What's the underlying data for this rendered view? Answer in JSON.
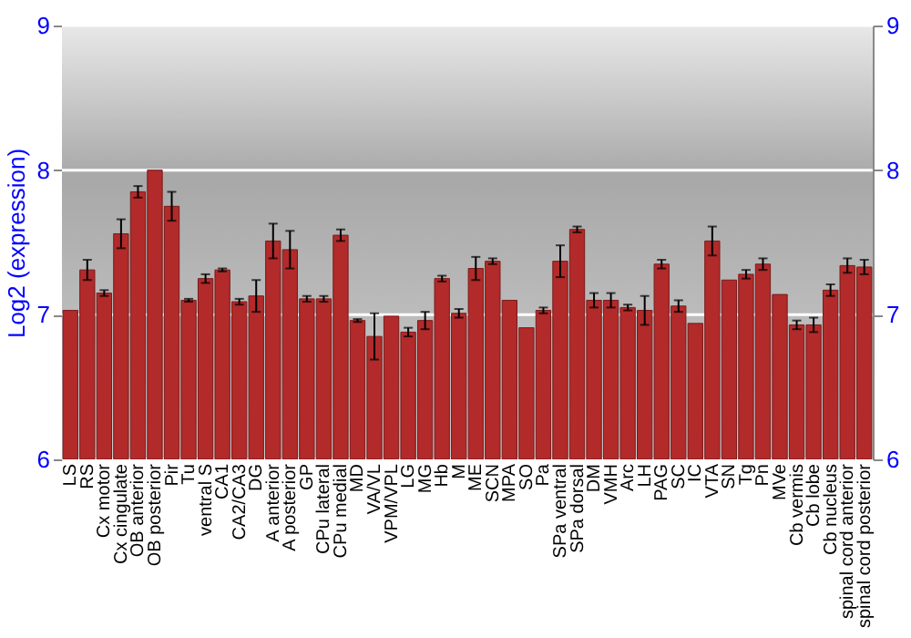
{
  "chart_data": {
    "type": "bar",
    "ylabel": "Log2 (expression)",
    "categories": [
      "LS",
      "RS",
      "Cx motor",
      "Cx cingulate",
      "OB anterior",
      "OB posterior",
      "Pir",
      "Tu",
      "ventral S",
      "CA1",
      "CA2/CA3",
      "DG",
      "A anterior",
      "A posterior",
      "GP",
      "CPu lateral",
      "CPu medial",
      "MD",
      "VA/VL",
      "VPM/VPL",
      "LG",
      "MG",
      "Hb",
      "M",
      "ME",
      "SCN",
      "MPA",
      "SO",
      "Pa",
      "SPa ventral",
      "SPa dorsal",
      "DM",
      "VMH",
      "Arc",
      "LH",
      "PAG",
      "SC",
      "IC",
      "VTA",
      "SN",
      "Tg",
      "Pn",
      "MVe",
      "Cb vermis",
      "Cb lobe",
      "Cb nucleus",
      "spinal cord anterior",
      "spinal cord posterior"
    ],
    "series": [
      {
        "color": "#b22a2a",
        "values": [
          7.03,
          7.31,
          7.15,
          7.56,
          7.85,
          8.0,
          7.75,
          7.1,
          7.25,
          7.31,
          7.09,
          7.13,
          7.51,
          7.45,
          7.11,
          7.11,
          7.55,
          6.96,
          6.85,
          6.99,
          6.88,
          6.96,
          7.25,
          7.01,
          7.32,
          7.37,
          7.1,
          6.91,
          7.03,
          7.37,
          7.59,
          7.1,
          7.1,
          7.05,
          7.03,
          7.35,
          7.06,
          6.94,
          7.51,
          7.24,
          7.28,
          7.35,
          7.14,
          6.93,
          6.93,
          7.17,
          7.34,
          7.33
        ],
        "errors": [
          null,
          0.07,
          0.02,
          0.1,
          0.04,
          null,
          0.1,
          0.01,
          0.03,
          0.01,
          0.02,
          0.11,
          0.12,
          0.13,
          0.02,
          0.02,
          0.04,
          0.01,
          0.16,
          null,
          0.03,
          0.06,
          0.02,
          0.03,
          0.08,
          0.02,
          null,
          null,
          0.02,
          0.11,
          0.02,
          0.05,
          0.05,
          0.02,
          0.1,
          0.03,
          0.04,
          null,
          0.1,
          null,
          0.03,
          0.04,
          null,
          0.03,
          0.05,
          0.04,
          0.05,
          0.05
        ]
      }
    ],
    "ylim": [
      6,
      9
    ],
    "yticks": [
      6,
      7,
      8,
      9
    ],
    "y2lim": [
      6,
      9
    ],
    "y2ticks": [
      6,
      7,
      8,
      9
    ],
    "grid": "y"
  }
}
